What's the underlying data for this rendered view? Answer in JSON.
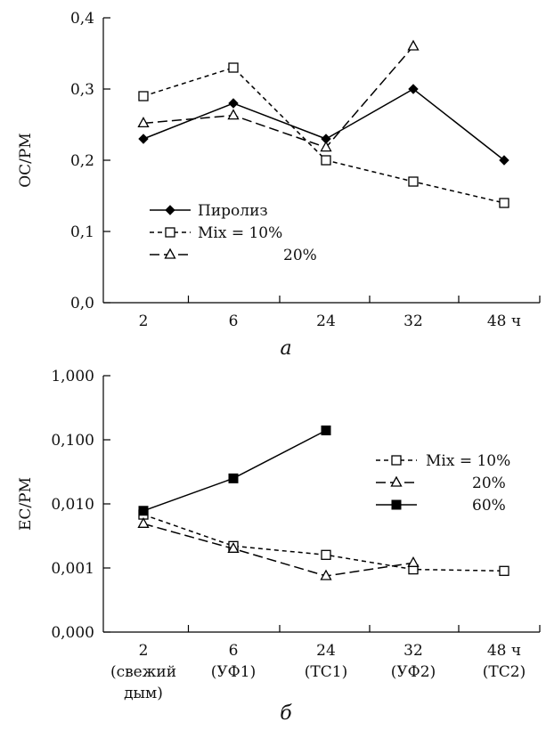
{
  "chart_data": [
    {
      "type": "line",
      "panel_label": "а",
      "ylabel": "OC/PM",
      "xlabel": "",
      "categories": [
        "2",
        "6",
        "24",
        "32",
        "48 ч"
      ],
      "yticks": [
        "0,0",
        "0,1",
        "0,2",
        "0,3",
        "0,4"
      ],
      "ylim": [
        0,
        0.4
      ],
      "yscale": "linear",
      "grid": false,
      "legend_position": "lower-left",
      "series": [
        {
          "name": "Пиролиз",
          "legend_label": "Пиролиз",
          "values": [
            0.23,
            0.28,
            0.23,
            0.3,
            0.2
          ],
          "marker": "filled-diamond",
          "line": "solid",
          "color": "#000000"
        },
        {
          "name": "Mix = 10%",
          "legend_label": "Mix = 10%",
          "values": [
            0.29,
            0.33,
            0.2,
            0.17,
            0.14
          ],
          "marker": "open-square",
          "line": "short-dash",
          "color": "#000000"
        },
        {
          "name": "20%",
          "legend_label": "20%",
          "values": [
            0.252,
            0.263,
            0.218,
            0.36,
            null
          ],
          "marker": "open-triangle",
          "line": "long-dash",
          "color": "#000000"
        }
      ]
    },
    {
      "type": "line",
      "panel_label": "б",
      "ylabel": "EC/PM",
      "xlabel": "",
      "categories": [
        "2",
        "6",
        "24",
        "32",
        "48 ч"
      ],
      "category_sublabels": [
        [
          "(свежий",
          "дым)"
        ],
        [
          "(УФ1)"
        ],
        [
          "(TC1)"
        ],
        [
          "(УФ2)"
        ],
        [
          "(TC2)"
        ]
      ],
      "yticks": [
        "0,000",
        "0,001",
        "0,010",
        "0,100",
        "1,000"
      ],
      "ylim": [
        0.0001,
        1
      ],
      "yscale": "log",
      "grid": false,
      "legend_position": "right",
      "series": [
        {
          "name": "Mix = 10%",
          "legend_label": "Mix = 10%",
          "values": [
            0.0068,
            0.0022,
            0.0016,
            0.00095,
            0.0009
          ],
          "marker": "open-square",
          "line": "short-dash",
          "color": "#000000"
        },
        {
          "name": "20%",
          "legend_label": "20%",
          "values": [
            0.0049,
            0.002,
            0.00075,
            0.0012,
            null
          ],
          "marker": "open-triangle",
          "line": "long-dash",
          "color": "#000000"
        },
        {
          "name": "60%",
          "legend_label": "60%",
          "values": [
            0.0078,
            0.025,
            0.14,
            null,
            null
          ],
          "marker": "filled-square",
          "line": "solid",
          "color": "#000000"
        }
      ]
    }
  ]
}
